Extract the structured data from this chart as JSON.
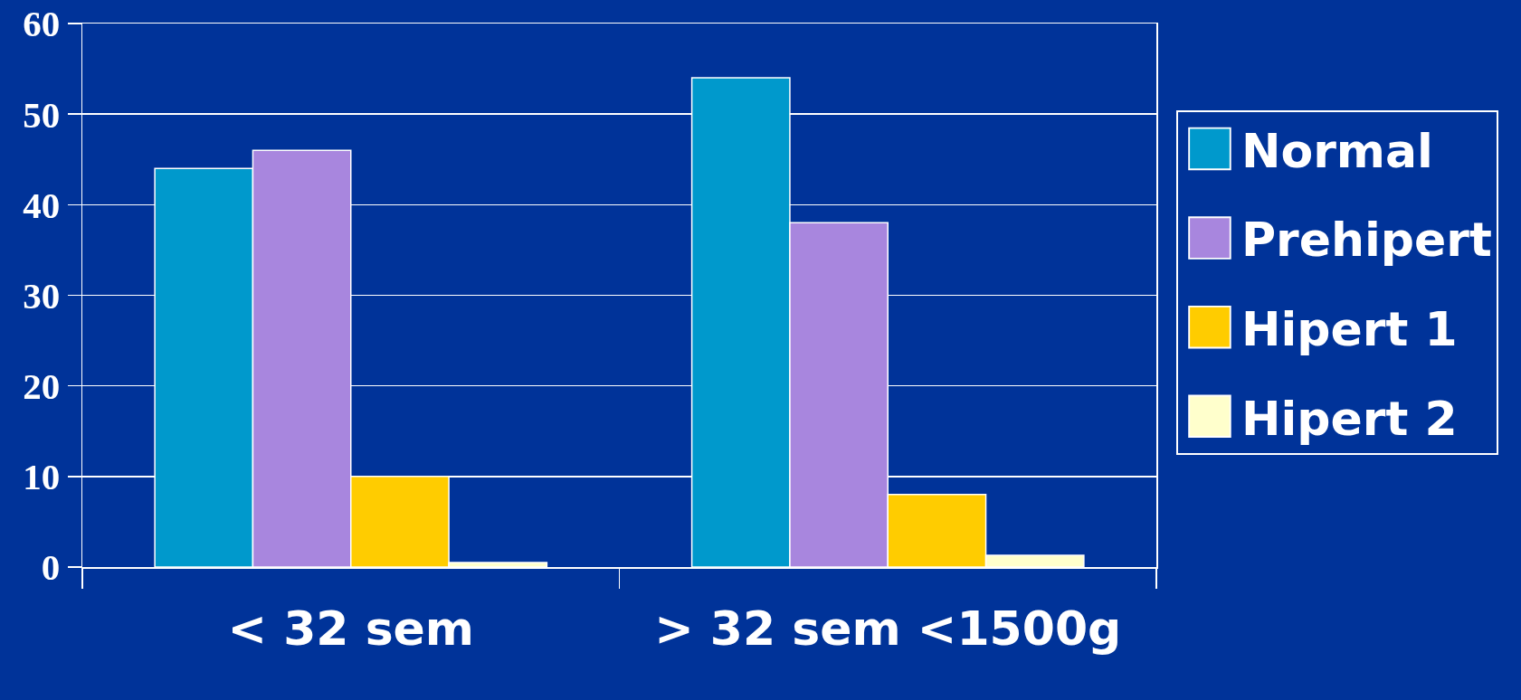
{
  "chart_data": {
    "type": "bar",
    "categories": [
      "< 32 sem",
      "> 32 sem <1500g"
    ],
    "series": [
      {
        "name": "Normal",
        "color": "#0099cc",
        "values": [
          44,
          54
        ]
      },
      {
        "name": "Prehipert",
        "color": "#a886de",
        "values": [
          46,
          38
        ]
      },
      {
        "name": "Hipert 1",
        "color": "#ffcc00",
        "values": [
          10,
          8
        ]
      },
      {
        "name": "Hipert 2",
        "color": "#ffffcc",
        "values": [
          0.5,
          1.3
        ]
      }
    ],
    "ylim": [
      0,
      60
    ],
    "yticks": [
      0,
      10,
      20,
      30,
      40,
      50,
      60
    ],
    "grid": "y",
    "legend": "right"
  }
}
